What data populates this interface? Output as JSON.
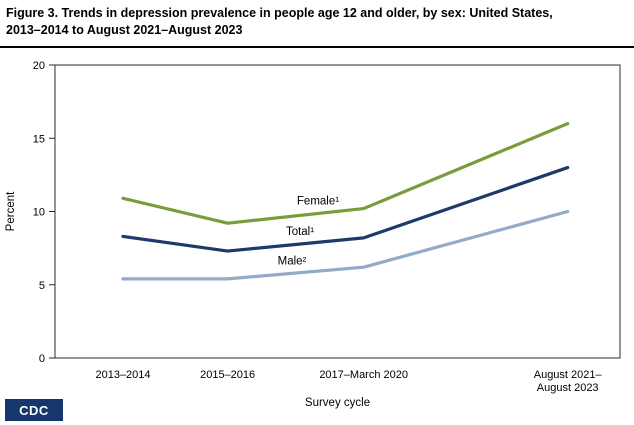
{
  "header": {
    "title_line1": "Figure 3. Trends in depression prevalence in people age 12 and older, by sex: United States,",
    "title_line2": "2013–2014 to August 2021–August 2023"
  },
  "footer": {
    "badge": "CDC"
  },
  "chart_data": {
    "type": "line",
    "title": "Figure 3. Trends in depression prevalence in people age 12 and older, by sex: United States, 2013–2014 to August 2021–August 2023",
    "xlabel": "Survey cycle",
    "ylabel": "Percent",
    "ylim": [
      0,
      20
    ],
    "yticks": [
      0,
      5,
      10,
      15,
      20
    ],
    "categories": [
      "2013–2014",
      "2015–2016",
      "2017–March 2020",
      "August 2021–\nAugust 2023"
    ],
    "x_numeric": [
      2014,
      2016,
      2018.6,
      2022.5
    ],
    "xlim": [
      2012.7,
      2023.5
    ],
    "grid": false,
    "legend_position": "inline-labels",
    "series": [
      {
        "name": "Female¹",
        "color": "#7a9c3c",
        "values": [
          10.9,
          9.2,
          10.2,
          16.0
        ]
      },
      {
        "name": "Total¹",
        "color": "#1f3a68",
        "values": [
          8.3,
          7.3,
          8.2,
          13.0
        ]
      },
      {
        "name": "Male²",
        "color": "#92abc6",
        "values": [
          5.4,
          5.4,
          6.2,
          10.0
        ]
      }
    ]
  }
}
